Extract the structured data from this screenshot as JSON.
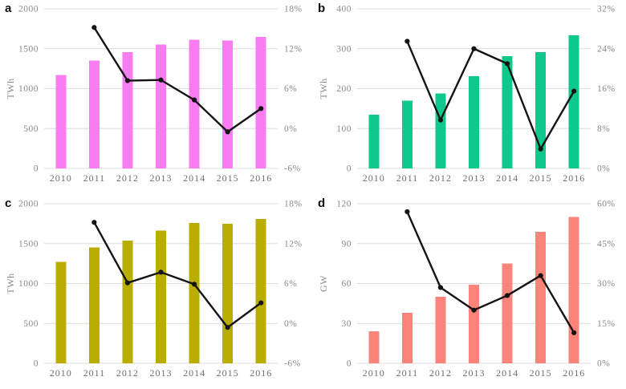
{
  "figure": {
    "description": "Four combo bar+line panels a-d, annual values 2010-2016 with year-over-year growth-rate line",
    "grid_color": "#dcdcdc",
    "line_color": "#141414",
    "background": "#ffffff"
  },
  "chart_data": [
    {
      "panel": "a",
      "type": "bar",
      "title": "",
      "categories": [
        "2010",
        "2011",
        "2012",
        "2013",
        "2014",
        "2015",
        "2016"
      ],
      "bar_series": {
        "name": "generation-TWh",
        "color": "#f97cf0",
        "values": [
          1170,
          1350,
          1455,
          1555,
          1615,
          1605,
          1650
        ]
      },
      "line_series": {
        "name": "growth-rate-percent",
        "color": "#141414",
        "x": [
          "2011",
          "2012",
          "2013",
          "2014",
          "2015",
          "2016"
        ],
        "values": [
          15.2,
          7.2,
          7.3,
          4.3,
          -0.5,
          3.0
        ]
      },
      "left_axis": {
        "label": "TWh",
        "min": 0,
        "max": 2000,
        "tick_values": [
          0,
          500,
          1000,
          1500,
          2000
        ],
        "tick_labels": [
          "0",
          "500",
          "1000",
          "1500",
          "2000"
        ]
      },
      "right_axis": {
        "min": -6,
        "max": 18,
        "tick_values": [
          -6,
          0,
          6,
          12,
          18
        ],
        "tick_labels": [
          "-6%",
          "0%",
          "6%",
          "12%",
          "18%"
        ]
      },
      "grid": true,
      "legend": "none"
    },
    {
      "panel": "b",
      "type": "bar",
      "title": "",
      "categories": [
        "2010",
        "2011",
        "2012",
        "2013",
        "2014",
        "2015",
        "2016"
      ],
      "bar_series": {
        "name": "generation-TWh",
        "color": "#0fc98c",
        "values": [
          135,
          170,
          188,
          231,
          281,
          291,
          334
        ]
      },
      "line_series": {
        "name": "growth-rate-percent",
        "color": "#141414",
        "x": [
          "2011",
          "2012",
          "2013",
          "2014",
          "2015",
          "2016"
        ],
        "values": [
          25.5,
          9.7,
          24.0,
          21.0,
          3.9,
          15.5
        ]
      },
      "left_axis": {
        "label": "TWh",
        "min": 0,
        "max": 400,
        "tick_values": [
          0,
          100,
          200,
          300,
          400
        ],
        "tick_labels": [
          "0",
          "100",
          "200",
          "300",
          "400"
        ]
      },
      "right_axis": {
        "min": 0,
        "max": 32,
        "tick_values": [
          0,
          8,
          16,
          24,
          32
        ],
        "tick_labels": [
          "0%",
          "8%",
          "16%",
          "24%",
          "32%"
        ]
      },
      "grid": true,
      "legend": "none"
    },
    {
      "panel": "c",
      "type": "bar",
      "title": "",
      "categories": [
        "2010",
        "2011",
        "2012",
        "2013",
        "2014",
        "2015",
        "2016"
      ],
      "bar_series": {
        "name": "generation-TWh",
        "color": "#b9ae00",
        "values": [
          1270,
          1450,
          1540,
          1665,
          1760,
          1750,
          1810
        ]
      },
      "line_series": {
        "name": "growth-rate-percent",
        "color": "#141414",
        "x": [
          "2011",
          "2012",
          "2013",
          "2014",
          "2015",
          "2016"
        ],
        "values": [
          15.2,
          6.1,
          7.7,
          5.9,
          -0.6,
          3.1
        ]
      },
      "left_axis": {
        "label": "TWh",
        "min": 0,
        "max": 2000,
        "tick_values": [
          0,
          500,
          1000,
          1500,
          2000
        ],
        "tick_labels": [
          "0",
          "500",
          "1000",
          "1500",
          "2000"
        ]
      },
      "right_axis": {
        "min": -6,
        "max": 18,
        "tick_values": [
          -6,
          0,
          6,
          12,
          18
        ],
        "tick_labels": [
          "-6%",
          "0%",
          "6%",
          "12%",
          "18%"
        ]
      },
      "grid": true,
      "legend": "none"
    },
    {
      "panel": "d",
      "type": "bar",
      "title": "",
      "categories": [
        "2010",
        "2011",
        "2012",
        "2013",
        "2014",
        "2015",
        "2016"
      ],
      "bar_series": {
        "name": "capacity-GW",
        "color": "#fa837a",
        "values": [
          24,
          38,
          50,
          59,
          75,
          99,
          110
        ]
      },
      "line_series": {
        "name": "growth-rate-percent",
        "color": "#141414",
        "x": [
          "2011",
          "2012",
          "2013",
          "2014",
          "2015",
          "2016"
        ],
        "values": [
          57.0,
          28.5,
          20.0,
          25.5,
          33.0,
          11.5
        ]
      },
      "left_axis": {
        "label": "GW",
        "min": 0,
        "max": 120,
        "tick_values": [
          0,
          30,
          60,
          90,
          120
        ],
        "tick_labels": [
          "0",
          "30",
          "60",
          "90",
          "120"
        ]
      },
      "right_axis": {
        "min": 0,
        "max": 60,
        "tick_values": [
          0,
          15,
          30,
          45,
          60
        ],
        "tick_labels": [
          "0%",
          "15%",
          "30%",
          "45%",
          "60%"
        ]
      },
      "grid": true,
      "legend": "none"
    }
  ]
}
